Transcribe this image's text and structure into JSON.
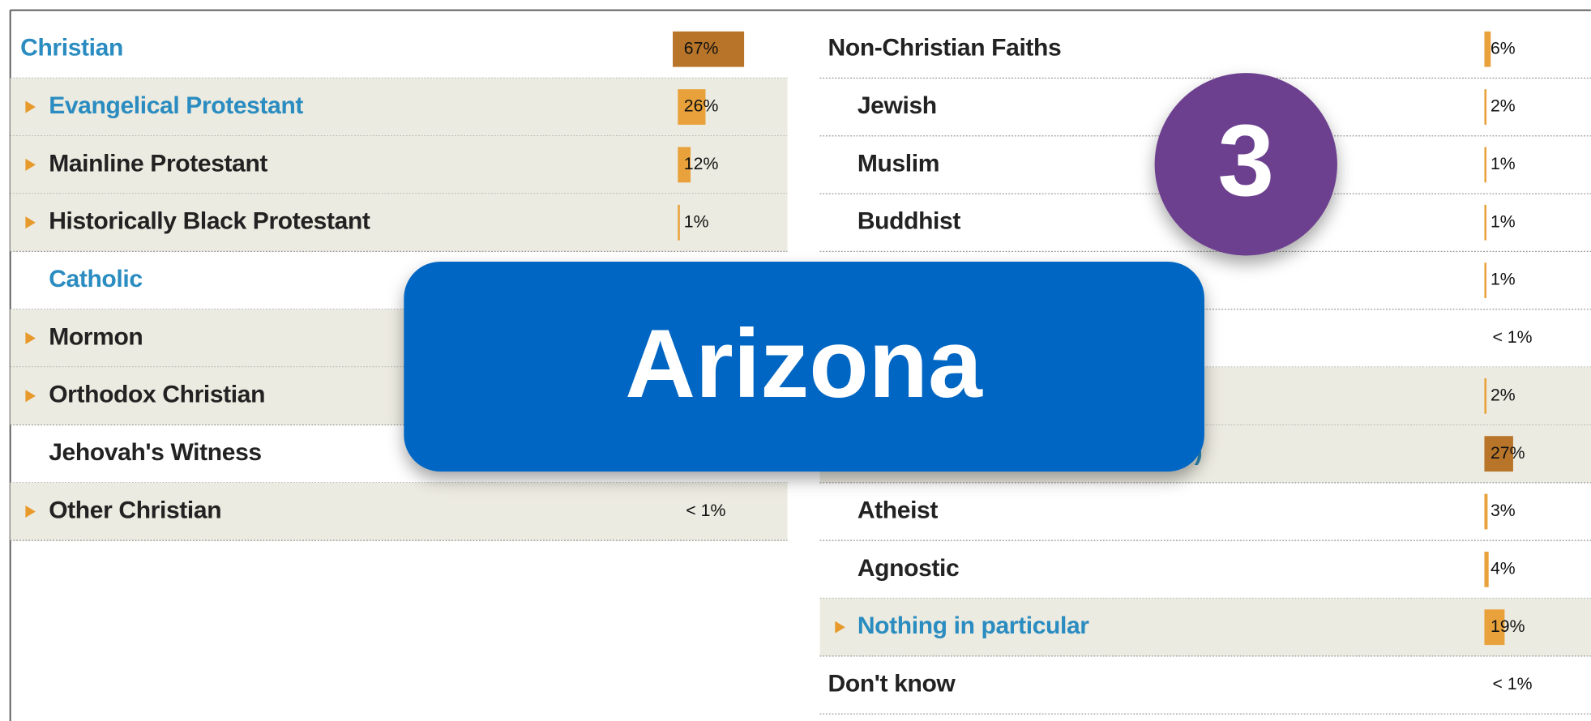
{
  "left": [
    {
      "label": "Christian",
      "value": 67,
      "value_label": "67%"
    },
    {
      "label": "Evangelical Protestant",
      "value": 26,
      "value_label": "26%"
    },
    {
      "label": "Mainline Protestant",
      "value": 12,
      "value_label": "12%"
    },
    {
      "label": "Historically Black Protestant",
      "value": 1,
      "value_label": "1%"
    },
    {
      "label": "Catholic",
      "value": null,
      "value_label": null
    },
    {
      "label": "Mormon",
      "value": null,
      "value_label": null
    },
    {
      "label": "Orthodox Christian",
      "value": null,
      "value_label": null
    },
    {
      "label": "Jehovah's Witness",
      "value": null,
      "value_label": null
    },
    {
      "label": "Other Christian",
      "value": null,
      "value_label": "< 1%"
    }
  ],
  "right": [
    {
      "label": "Non-Christian Faiths",
      "value": 6,
      "value_label": "6%"
    },
    {
      "label": "Jewish",
      "value": 2,
      "value_label": "2%"
    },
    {
      "label": "Muslim",
      "value": 1,
      "value_label": "1%"
    },
    {
      "label": "Buddhist",
      "value": 1,
      "value_label": "1%"
    },
    {
      "label": null,
      "value": 1,
      "value_label": "1%"
    },
    {
      "label": null,
      "value": null,
      "value_label": "< 1%"
    },
    {
      "label": null,
      "value": 2,
      "value_label": "2%"
    },
    {
      "label": "es\")",
      "value": 27,
      "value_label": "27%"
    },
    {
      "label": "Atheist",
      "value": 3,
      "value_label": "3%"
    },
    {
      "label": "Agnostic",
      "value": 4,
      "value_label": "4%"
    },
    {
      "label": "Nothing in particular",
      "value": 19,
      "value_label": "19%"
    },
    {
      "label": "Don't know",
      "value": null,
      "value_label": "< 1%"
    }
  ],
  "overlay": {
    "title": "Arizona",
    "badge": "3"
  }
}
